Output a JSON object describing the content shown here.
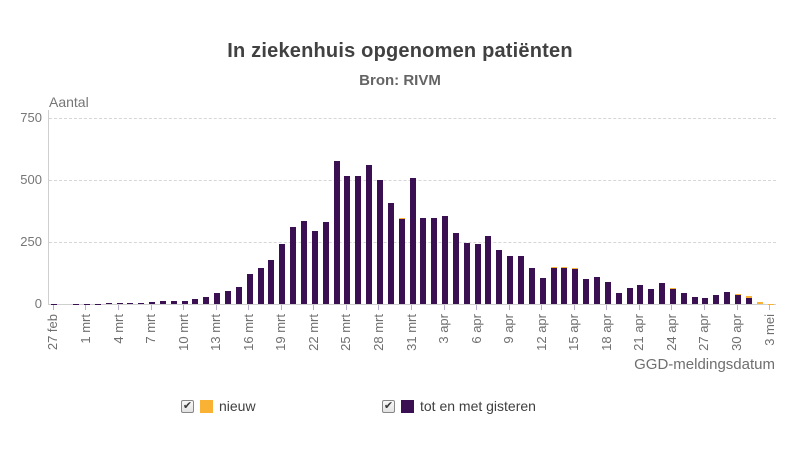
{
  "title": "In ziekenhuis opgenomen patiënten",
  "subtitle": "Bron: RIVM",
  "y_axis": {
    "label": "Aantal",
    "ticks": [
      0,
      250,
      500,
      750
    ],
    "max": 750
  },
  "x_axis": {
    "label": "GGD-meldingsdatum",
    "tick_every": 3,
    "tick_labels": [
      "27 feb",
      "1 mrt",
      "4 mrt",
      "7 mrt",
      "10 mrt",
      "13 mrt",
      "16 mrt",
      "19 mrt",
      "22 mrt",
      "25 mrt",
      "28 mrt",
      "31 mrt",
      "3 apr",
      "6 apr",
      "9 apr",
      "12 apr",
      "15 apr",
      "18 apr",
      "21 apr",
      "24 apr",
      "27 apr",
      "30 apr",
      "3 mei"
    ]
  },
  "legend": [
    {
      "label": "nieuw",
      "color": "#f9b233",
      "checked": true
    },
    {
      "label": "tot en met gisteren",
      "color": "#3b1053",
      "checked": true
    }
  ],
  "colors": {
    "bar_purple": "#3b1053",
    "bar_orange": "#f9b233",
    "gridline": "#d6d6d6",
    "axis_line": "#cfcfcf",
    "tick_mark": "#b9b0cc",
    "title_text": "#414141",
    "axis_text": "#767676"
  },
  "chart_data": {
    "type": "bar",
    "stacked": true,
    "grid": true,
    "legend_position": "bottom",
    "ylim": [
      0,
      750
    ],
    "categories": [
      "27 feb",
      "28 feb",
      "29 feb",
      "1 mrt",
      "2 mrt",
      "3 mrt",
      "4 mrt",
      "5 mrt",
      "6 mrt",
      "7 mrt",
      "8 mrt",
      "9 mrt",
      "10 mrt",
      "11 mrt",
      "12 mrt",
      "13 mrt",
      "14 mrt",
      "15 mrt",
      "16 mrt",
      "17 mrt",
      "18 mrt",
      "19 mrt",
      "20 mrt",
      "21 mrt",
      "22 mrt",
      "23 mrt",
      "24 mrt",
      "25 mrt",
      "26 mrt",
      "27 mrt",
      "28 mrt",
      "29 mrt",
      "30 mrt",
      "31 mrt",
      "1 apr",
      "2 apr",
      "3 apr",
      "4 apr",
      "5 apr",
      "6 apr",
      "7 apr",
      "8 apr",
      "9 apr",
      "10 apr",
      "11 apr",
      "12 apr",
      "13 apr",
      "14 apr",
      "15 apr",
      "16 apr",
      "17 apr",
      "18 apr",
      "19 apr",
      "20 apr",
      "21 apr",
      "22 apr",
      "23 apr",
      "24 apr",
      "25 apr",
      "26 apr",
      "27 apr",
      "28 apr",
      "29 apr",
      "30 apr",
      "1 mei",
      "2 mei",
      "3 mei"
    ],
    "series": [
      {
        "name": "tot en met gisteren",
        "color": "#3b1053",
        "values": [
          1,
          0,
          1,
          2,
          1,
          3,
          4,
          3,
          5,
          8,
          14,
          13,
          14,
          20,
          28,
          45,
          52,
          70,
          120,
          146,
          177,
          240,
          310,
          334,
          294,
          330,
          577,
          515,
          515,
          558,
          498,
          405,
          342,
          505,
          345,
          345,
          353,
          285,
          245,
          240,
          272,
          216,
          192,
          192,
          143,
          103,
          143,
          143,
          140,
          100,
          109,
          89,
          43,
          65,
          78,
          59,
          85,
          60,
          43,
          27,
          25,
          38,
          47,
          35,
          26,
          0,
          0
        ]
      },
      {
        "name": "nieuw",
        "color": "#f9b233",
        "values": [
          0,
          0,
          0,
          0,
          0,
          0,
          0,
          0,
          0,
          0,
          0,
          0,
          0,
          0,
          0,
          0,
          0,
          0,
          0,
          0,
          0,
          0,
          0,
          0,
          0,
          0,
          0,
          0,
          0,
          0,
          0,
          0,
          5,
          0,
          0,
          0,
          0,
          0,
          0,
          0,
          0,
          0,
          0,
          0,
          0,
          0,
          5,
          5,
          3,
          0,
          0,
          0,
          0,
          0,
          0,
          0,
          0,
          3,
          0,
          0,
          0,
          0,
          0,
          5,
          6,
          9,
          1
        ]
      }
    ],
    "title": "In ziekenhuis opgenomen patiënten",
    "subtitle": "Bron: RIVM",
    "xlabel": "GGD-meldingsdatum",
    "ylabel": "Aantal"
  }
}
